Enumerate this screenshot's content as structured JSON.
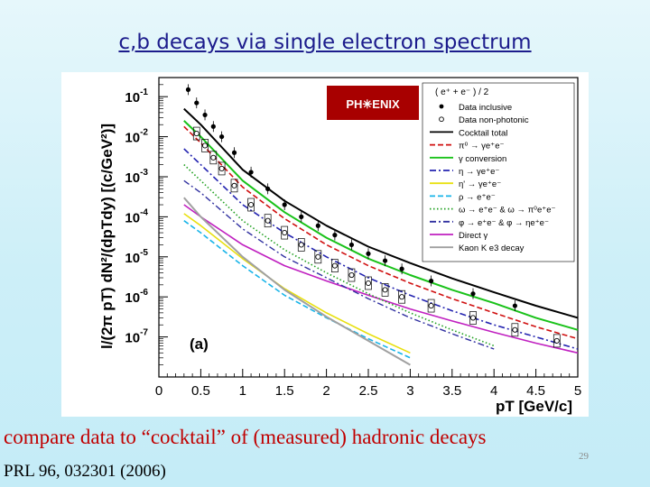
{
  "slide": {
    "title": "c,b decays via single electron spectrum",
    "caption": "compare data to “cocktail” of (measured) hadronic decays",
    "reference": "PRL 96, 032301 (2006)",
    "slide_number": "29"
  },
  "logo": {
    "text": "PH✳ENIX",
    "bg": "#a80000",
    "fg": "#ffffff"
  },
  "chart_data": {
    "type": "line",
    "ylabel": "l/(2π pT) dN²/(dpTdy) [(c/GeV²)]",
    "xlabel": "pT [GeV/c]",
    "panel_label": "(a)",
    "xlim": [
      0,
      5
    ],
    "ylim": [
      1e-08,
      0.3
    ],
    "yscale": "log",
    "x_ticks": [
      "0",
      "0.5",
      "1",
      "1.5",
      "2",
      "2.5",
      "3",
      "3.5",
      "4",
      "4.5",
      "5"
    ],
    "y_ticks": [
      {
        "base": "10",
        "exp": "-1",
        "value": 0.1
      },
      {
        "base": "10",
        "exp": "-2",
        "value": 0.01
      },
      {
        "base": "10",
        "exp": "-3",
        "value": 0.001
      },
      {
        "base": "10",
        "exp": "-4",
        "value": 0.0001
      },
      {
        "base": "10",
        "exp": "-5",
        "value": 1e-05
      },
      {
        "base": "10",
        "exp": "-6",
        "value": 1e-06
      },
      {
        "base": "10",
        "exp": "-7",
        "value": 1e-07
      }
    ],
    "legend_position": "top-right",
    "legend_title": "( e⁺ + e⁻ ) / 2",
    "legend": [
      {
        "label": "Data inclusive",
        "marker": "filled-circle",
        "color": "#000000"
      },
      {
        "label": "Data non-photonic",
        "marker": "open-circle",
        "color": "#000000"
      },
      {
        "label": "Cocktail total",
        "color": "#000000",
        "dash": "solid"
      },
      {
        "label": "π⁰ → γe⁺e⁻",
        "color": "#d01010",
        "dash": "dashed"
      },
      {
        "label": "γ conversion",
        "color": "#19c219",
        "dash": "solid"
      },
      {
        "label": "η → γe⁺e⁻",
        "color": "#2424b0",
        "dash": "dashdot"
      },
      {
        "label": "η' → γe⁺e⁻",
        "color": "#e8e010",
        "dash": "solid"
      },
      {
        "label": "ρ → e⁺e⁻",
        "color": "#18b4e8",
        "dash": "dashed"
      },
      {
        "label": "ω → e⁺e⁻ & ω → π⁰e⁺e⁻",
        "color": "#20a020",
        "dash": "dotted"
      },
      {
        "label": "φ → e⁺e⁻ & φ → ηe⁺e⁻",
        "color": "#3030a0",
        "dash": "dashdot"
      },
      {
        "label": "Direct γ",
        "color": "#c020c0",
        "dash": "solid"
      },
      {
        "label": "Kaon K e3 decay",
        "color": "#a0a0a0",
        "dash": "solid"
      }
    ],
    "series": [
      {
        "name": "Cocktail total",
        "color": "#000000",
        "dash": "solid",
        "width": 2,
        "x": [
          0.3,
          0.5,
          1.0,
          1.5,
          2.0,
          2.5,
          3.0,
          3.5,
          4.0,
          4.5,
          5.0
        ],
        "y": [
          0.05,
          0.02,
          0.0015,
          0.00025,
          6e-05,
          1.8e-05,
          7e-06,
          2.9e-06,
          1.3e-06,
          6e-07,
          3e-07
        ]
      },
      {
        "name": "γ conversion",
        "color": "#19c219",
        "dash": "solid",
        "width": 2,
        "x": [
          0.3,
          0.5,
          1.0,
          1.5,
          2.0,
          2.5,
          3.0,
          3.5,
          4.0,
          4.5,
          5.0
        ],
        "y": [
          0.025,
          0.01,
          0.0008,
          0.00013,
          3e-05,
          9e-06,
          3.5e-06,
          1.5e-06,
          7e-07,
          3e-07,
          1.5e-07
        ]
      },
      {
        "name": "π⁰ → γe⁺e⁻",
        "color": "#d01010",
        "dash": "dashed",
        "width": 1.6,
        "x": [
          0.3,
          0.5,
          1.0,
          1.5,
          2.0,
          2.5,
          3.0,
          3.5,
          4.0,
          4.5,
          5.0
        ],
        "y": [
          0.018,
          0.007,
          0.00055,
          9e-05,
          2e-05,
          6e-06,
          2.2e-06,
          9e-07,
          4e-07,
          1.8e-07,
          9e-08
        ]
      },
      {
        "name": "η → γe⁺e⁻",
        "color": "#2424b0",
        "dash": "dashdot",
        "width": 1.6,
        "x": [
          0.3,
          0.5,
          1.0,
          1.5,
          2.0,
          2.5,
          3.0,
          3.5,
          4.0,
          4.5,
          5.0
        ],
        "y": [
          0.005,
          0.002,
          0.0002,
          4e-05,
          1e-05,
          3e-06,
          1.1e-06,
          4.5e-07,
          2e-07,
          1e-07,
          5e-08
        ]
      },
      {
        "name": "Direct γ",
        "color": "#c020c0",
        "dash": "solid",
        "width": 1.6,
        "x": [
          0.3,
          0.5,
          1.0,
          1.5,
          2.0,
          2.5,
          3.0,
          3.5,
          4.0,
          4.5,
          5.0
        ],
        "y": [
          0.0002,
          0.0001,
          2e-05,
          6e-06,
          2.5e-06,
          1.1e-06,
          5e-07,
          2.5e-07,
          1.3e-07,
          7e-08,
          4e-08
        ]
      },
      {
        "name": "η' → γe⁺e⁻",
        "color": "#e8e010",
        "dash": "solid",
        "width": 1.6,
        "x": [
          0.3,
          0.5,
          1.0,
          1.5,
          2.0,
          2.5,
          3.0
        ],
        "y": [
          0.00012,
          6e-05,
          9e-06,
          1.6e-06,
          4e-07,
          1.2e-07,
          4e-08
        ]
      },
      {
        "name": "ρ → e⁺e⁻",
        "color": "#18b4e8",
        "dash": "dashed",
        "width": 1.6,
        "x": [
          0.3,
          0.5,
          1.0,
          1.5,
          2.0,
          2.5,
          3.0
        ],
        "y": [
          8e-05,
          4e-05,
          6e-06,
          1.1e-06,
          3e-07,
          9e-08,
          3e-08
        ]
      },
      {
        "name": "ω → e⁺e⁻ & ω → π⁰e⁺e⁻",
        "color": "#20a020",
        "dash": "dotted",
        "width": 1.6,
        "x": [
          0.3,
          0.5,
          1.0,
          1.5,
          2.0,
          2.5,
          3.0,
          3.5,
          4.0
        ],
        "y": [
          0.002,
          0.0008,
          8e-05,
          1.5e-05,
          4e-06,
          1.2e-06,
          4e-07,
          1.5e-07,
          6e-08
        ]
      },
      {
        "name": "φ → e⁺e⁻ & φ → ηe⁺e⁻",
        "color": "#3030a0",
        "dash": "dashdot",
        "width": 1.4,
        "x": [
          0.3,
          0.5,
          1.0,
          1.5,
          2.0,
          2.5,
          3.0,
          3.5,
          4.0
        ],
        "y": [
          0.0008,
          0.0004,
          5e-05,
          1e-05,
          3e-06,
          9e-07,
          3e-07,
          1.2e-07,
          5e-08
        ]
      },
      {
        "name": "Kaon K e3 decay",
        "color": "#a0a0a0",
        "dash": "solid",
        "width": 2,
        "x": [
          0.3,
          0.5,
          1.0,
          1.5,
          2.0,
          2.5,
          3.0
        ],
        "y": [
          0.0003,
          0.0001,
          1e-05,
          1.5e-06,
          3.2e-07,
          8e-08,
          2e-08
        ]
      }
    ],
    "data_inclusive": {
      "x": [
        0.35,
        0.45,
        0.55,
        0.65,
        0.75,
        0.9,
        1.1,
        1.3,
        1.5,
        1.7,
        1.9,
        2.1,
        2.3,
        2.5,
        2.7,
        2.9,
        3.25,
        3.75,
        4.25
      ],
      "y": [
        0.15,
        0.07,
        0.035,
        0.018,
        0.01,
        0.004,
        0.0013,
        0.0005,
        0.0002,
        0.0001,
        6e-05,
        3.5e-05,
        2e-05,
        1.2e-05,
        8e-06,
        5e-06,
        2.5e-06,
        1.2e-06,
        6e-07
      ]
    },
    "data_nonphotonic": {
      "x": [
        0.45,
        0.55,
        0.65,
        0.75,
        0.9,
        1.1,
        1.3,
        1.5,
        1.7,
        1.9,
        2.1,
        2.3,
        2.5,
        2.7,
        2.9,
        3.25,
        3.75,
        4.25,
        4.75
      ],
      "y": [
        0.012,
        0.006,
        0.003,
        0.0016,
        0.0006,
        0.0002,
        8e-05,
        4e-05,
        2e-05,
        1e-05,
        6e-06,
        3.5e-06,
        2.2e-06,
        1.5e-06,
        1e-06,
        6e-07,
        3e-07,
        1.5e-07,
        8e-08
      ]
    }
  }
}
